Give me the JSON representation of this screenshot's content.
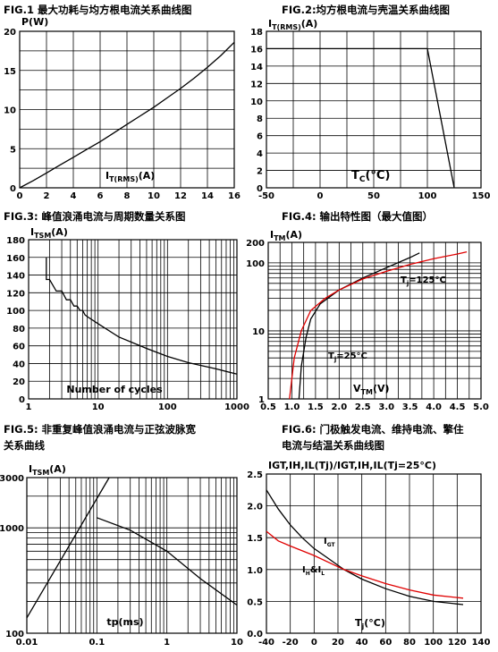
{
  "chart_data": [
    {
      "id": "fig1",
      "type": "line",
      "title": "FIG.1  最大功耗与均方根电流关系曲线图",
      "ylabel": "P(W)",
      "xlabel_main": "I",
      "xlabel_sub": "T(RMS)",
      "xlabel_unit": "(A)",
      "xlim": [
        0,
        16
      ],
      "ylim": [
        0,
        20
      ],
      "xticks": [
        "0",
        "2",
        "4",
        "6",
        "8",
        "10",
        "12",
        "14",
        "16"
      ],
      "yticks": [
        "0",
        "5",
        "10",
        "15",
        "20"
      ],
      "grid": true,
      "series": [
        {
          "values": [
            [
              0,
              0
            ],
            [
              1,
              0.9
            ],
            [
              2,
              1.9
            ],
            [
              3,
              2.9
            ],
            [
              4,
              3.9
            ],
            [
              5,
              4.9
            ],
            [
              6,
              5.9
            ],
            [
              7,
              7.0
            ],
            [
              8,
              8.1
            ],
            [
              9,
              9.2
            ],
            [
              10,
              10.3
            ],
            [
              11,
              11.5
            ],
            [
              12,
              12.7
            ],
            [
              13,
              14.0
            ],
            [
              14,
              15.4
            ],
            [
              15,
              16.9
            ],
            [
              16,
              18.6
            ]
          ]
        }
      ]
    },
    {
      "id": "fig2",
      "type": "line",
      "title": "FIG.2:均方根电流与壳温关系曲线图",
      "ylabel_main": "I",
      "ylabel_sub": "T(RMS)",
      "ylabel_unit": "(A)",
      "xlabel_main": "T",
      "xlabel_sub": "C",
      "xlabel_unit": "(°C)",
      "xlim": [
        -50,
        150
      ],
      "ylim": [
        0,
        18
      ],
      "xticks": [
        "-50",
        "0",
        "50",
        "100",
        "150"
      ],
      "yticks": [
        "0",
        "2",
        "4",
        "6",
        "8",
        "10",
        "12",
        "14",
        "16",
        "18"
      ],
      "grid": true,
      "series": [
        {
          "values": [
            [
              -50,
              16
            ],
            [
              100,
              16
            ],
            [
              125,
              0
            ]
          ]
        }
      ]
    },
    {
      "id": "fig3",
      "type": "line",
      "title": "FIG.3:  峰值浪涌电流与周期数量关系图",
      "ylabel_main": "I",
      "ylabel_sub": "TSM",
      "ylabel_unit": "(A)",
      "xlabel": "Number of cycles",
      "xscale": "log",
      "xlim": [
        1,
        1000
      ],
      "ylim": [
        0,
        180
      ],
      "xticks": [
        "1",
        "10",
        "100",
        "1000"
      ],
      "yticks": [
        "0",
        "20",
        "40",
        "60",
        "80",
        "100",
        "120",
        "140",
        "160",
        "180"
      ],
      "grid": true,
      "series": [
        {
          "values": [
            [
              1.8,
              160
            ],
            [
              1.8,
              135
            ],
            [
              2,
              135
            ],
            [
              2.5,
              122
            ],
            [
              3,
              122
            ],
            [
              3.5,
              112
            ],
            [
              4,
              112
            ],
            [
              4.5,
              105
            ],
            [
              5,
              105
            ],
            [
              5.5,
              100
            ],
            [
              6,
              100
            ],
            [
              6.5,
              95
            ],
            [
              7,
              93
            ],
            [
              10,
              85
            ],
            [
              20,
              70
            ],
            [
              50,
              57
            ],
            [
              100,
              48
            ],
            [
              200,
              41
            ],
            [
              500,
              34
            ],
            [
              1000,
              28
            ]
          ]
        }
      ]
    },
    {
      "id": "fig4",
      "type": "line",
      "title": "FIG.4:  输出特性图（最大值图）",
      "ylabel_main": "I",
      "ylabel_sub": "TM",
      "ylabel_unit": "(A)",
      "xlabel_main": "V",
      "xlabel_sub": "TM",
      "xlabel_unit": "(V)",
      "yscale": "log",
      "xlim": [
        0.5,
        5.0
      ],
      "ylim": [
        1,
        200
      ],
      "xticks": [
        "0.5",
        "1.0",
        "1.5",
        "2.0",
        "2.5",
        "3.0",
        "3.5",
        "4.0",
        "4.5",
        "5.0"
      ],
      "yticks": [
        "1",
        "10",
        "100",
        "200"
      ],
      "grid": true,
      "series": [
        {
          "name": "Tj=25°C",
          "color": "#000000",
          "values": [
            [
              1.15,
              1
            ],
            [
              1.2,
              3
            ],
            [
              1.3,
              8
            ],
            [
              1.4,
              15
            ],
            [
              1.6,
              25
            ],
            [
              2.0,
              40
            ],
            [
              2.5,
              60
            ],
            [
              3.0,
              85
            ],
            [
              3.5,
              120
            ],
            [
              3.7,
              140
            ]
          ]
        },
        {
          "name": "Tj=125°C",
          "color": "#e00000",
          "values": [
            [
              0.95,
              1
            ],
            [
              1.05,
              4
            ],
            [
              1.2,
              10
            ],
            [
              1.4,
              20
            ],
            [
              1.7,
              30
            ],
            [
              2.0,
              40
            ],
            [
              2.5,
              58
            ],
            [
              3.0,
              75
            ],
            [
              3.5,
              95
            ],
            [
              4.0,
              115
            ],
            [
              4.5,
              135
            ],
            [
              4.7,
              145
            ]
          ]
        }
      ],
      "annotations": [
        "T",
        "j",
        "=125°C",
        "T",
        "j",
        "=25°C"
      ]
    },
    {
      "id": "fig5",
      "type": "line",
      "title_line1": "FIG.5:  非重复峰值浪涌电流与正弦波脉宽",
      "title_line2": "关系曲线",
      "ylabel_main": "I",
      "ylabel_sub": "TSM",
      "ylabel_unit": "(A)",
      "xlabel": "tp(ms)",
      "xscale": "log",
      "yscale": "log",
      "xlim": [
        0.01,
        10
      ],
      "ylim": [
        100,
        3000
      ],
      "xticks": [
        "0.01",
        "0.1",
        "1",
        "10"
      ],
      "yticks": [
        "100",
        "1000",
        "3000"
      ],
      "grid": true,
      "series": [
        {
          "values": [
            [
              0.01,
              140
            ],
            [
              0.15,
              3000
            ]
          ]
        },
        {
          "values": [
            [
              0.1,
              1250
            ],
            [
              0.3,
              950
            ],
            [
              1,
              600
            ],
            [
              3,
              330
            ],
            [
              10,
              185
            ]
          ]
        }
      ]
    },
    {
      "id": "fig6",
      "type": "line",
      "title_line1": "FIG.6:  门极触发电流、维持电流、擎住",
      "title_line2": "电流与结温关系曲线图",
      "ylabel": "IGT,IH,IL(Tj)/IGT,IH,IL(Tj=25°C)",
      "xlabel_main": "T",
      "xlabel_sub": "j",
      "xlabel_unit": "(°C)",
      "xlim": [
        -40,
        140
      ],
      "ylim": [
        0,
        2.5
      ],
      "xticks": [
        "-40",
        "-20",
        "0",
        "20",
        "40",
        "60",
        "80",
        "100",
        "120",
        "140"
      ],
      "yticks": [
        "0.0",
        "0.5",
        "1.0",
        "1.5",
        "2.0",
        "2.5"
      ],
      "grid": true,
      "series": [
        {
          "name": "IGT",
          "color": "#000000",
          "values": [
            [
              -40,
              2.25
            ],
            [
              -30,
              1.95
            ],
            [
              -20,
              1.7
            ],
            [
              -10,
              1.5
            ],
            [
              0,
              1.33
            ],
            [
              10,
              1.2
            ],
            [
              25,
              1.0
            ],
            [
              40,
              0.85
            ],
            [
              60,
              0.7
            ],
            [
              80,
              0.58
            ],
            [
              100,
              0.5
            ],
            [
              125,
              0.45
            ]
          ]
        },
        {
          "name": "IH&IL",
          "color": "#e00000",
          "values": [
            [
              -40,
              1.6
            ],
            [
              -30,
              1.45
            ],
            [
              -20,
              1.37
            ],
            [
              0,
              1.22
            ],
            [
              25,
              1.0
            ],
            [
              40,
              0.9
            ],
            [
              60,
              0.78
            ],
            [
              80,
              0.68
            ],
            [
              100,
              0.6
            ],
            [
              125,
              0.55
            ]
          ]
        }
      ],
      "annotations": [
        "I",
        "GT",
        "I",
        "H",
        "&I",
        "L"
      ]
    }
  ]
}
